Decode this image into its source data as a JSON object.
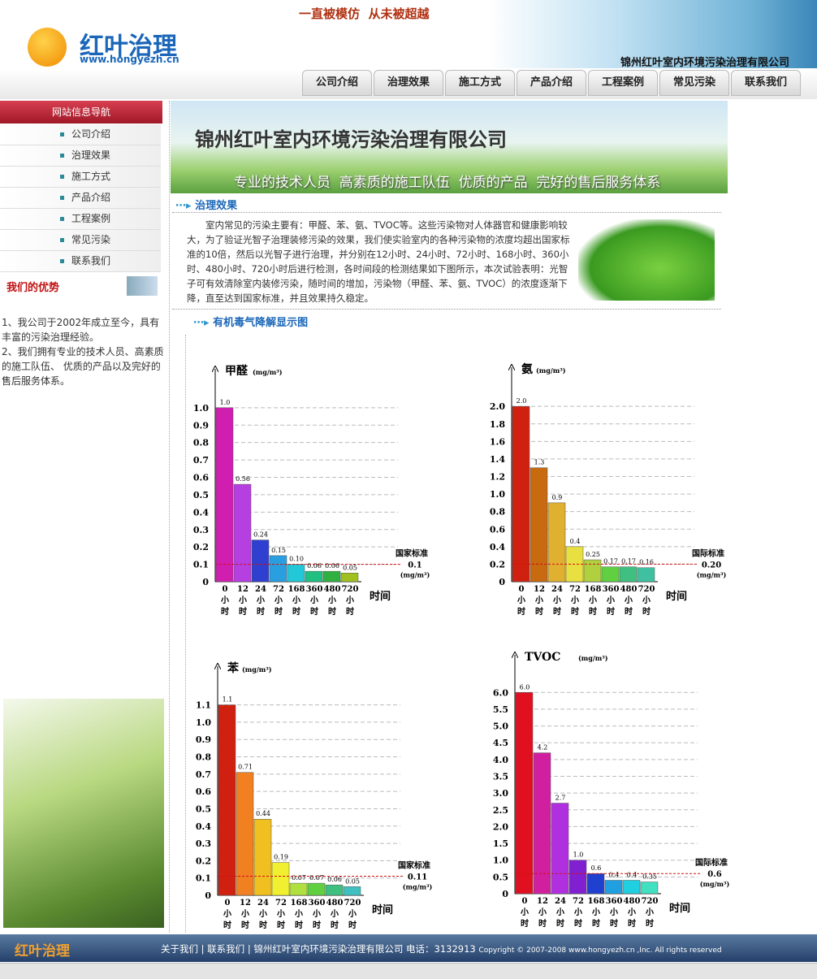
{
  "header": {
    "logo": "红叶治理",
    "url": "www.hongyezh.cn",
    "slogan": "一直被模仿  从未被超越",
    "company": "锦州红叶室内环境污染治理有限公司"
  },
  "nav": [
    "公司介绍",
    "治理效果",
    "施工方式",
    "产品介绍",
    "工程案例",
    "常见污染",
    "联系我们"
  ],
  "sidebar": {
    "nav_title": "网站信息导航",
    "items": [
      "公司介绍",
      "治理效果",
      "施工方式",
      "产品介绍",
      "工程案例",
      "常见污染",
      "联系我们"
    ],
    "advantage_title": "我们的优势",
    "advantages": [
      "1、我公司于2002年成立至今，具有丰富的污染治理经验。",
      "2、我们拥有专业的技术人员、高素质的施工队伍、 优质的产品以及完好的售后服务体系。"
    ]
  },
  "banner": {
    "title": "锦州红叶室内环境污染治理有限公司",
    "slogan": "专业的技术人员  高素质的施工队伍  优质的产品  完好的售后服务体系"
  },
  "section1": {
    "title": "治理效果",
    "text": "室内常见的污染主要有：甲醛、苯、氨、TVOC等。这些污染物对人体器官和健康影响较大，为了验证光智子治理装修污染的效果，我们使实验室内的各种污染物的浓度均超出国家标准的10倍，然后以光智子进行治理，并分别在12小时、24小时、72小时、168小时、360小时、480小时、720小时后进行检测，各时间段的检测结果如下图所示，本次试验表明：光智子可有效清除室内装修污染，随时间的增加，污染物（甲醛、苯、氨、TVOC）的浓度逐渐下降，直至达到国家标准，并且效果持久稳定。"
  },
  "section2": {
    "title": "有机毒气降解显示图"
  },
  "chart_data": [
    {
      "type": "bar",
      "title": "甲醛",
      "unit": "(mg/m³)",
      "xlabel": "时间",
      "categories": [
        "0小时",
        "12小时",
        "24小时",
        "72小时",
        "168小时",
        "360小时",
        "480小时",
        "720小时"
      ],
      "values": [
        1.0,
        0.56,
        0.24,
        0.15,
        0.1,
        0.06,
        0.06,
        0.05
      ],
      "value_labels": [
        "1.0",
        "0.56",
        "0.24",
        "0.15",
        "0.10",
        "0.06",
        "0.06",
        "0.05"
      ],
      "colors": [
        "#d01fb0",
        "#b53fe0",
        "#2f3fd0",
        "#2a9fe0",
        "#22c8d8",
        "#20c080",
        "#30b040",
        "#a0c020"
      ],
      "ylim": [
        0,
        1.2
      ],
      "yticks": [
        0,
        0.1,
        0.2,
        0.3,
        0.4,
        0.5,
        0.6,
        0.7,
        0.8,
        0.9,
        {
          "value": 1.0,
          "label": "1.0"
        }
      ],
      "grid": true,
      "standard": {
        "name": "国家标准",
        "value": 0.1
      }
    },
    {
      "type": "bar",
      "title": "氨",
      "unit": "(mg/m³)",
      "xlabel": "时间",
      "categories": [
        "0小时",
        "12小时",
        "24小时",
        "72小时",
        "168小时",
        "360小时",
        "480小时",
        "720小时"
      ],
      "values": [
        2.0,
        1.3,
        0.9,
        0.4,
        0.25,
        0.17,
        0.17,
        0.16
      ],
      "value_labels": [
        "2.0",
        "1.3",
        "0.9",
        "0.4",
        "0.25",
        "0.17",
        "0.17",
        "0.16"
      ],
      "colors": [
        "#d02010",
        "#c86a10",
        "#e0b030",
        "#e8e040",
        "#b0d040",
        "#60d040",
        "#40c080",
        "#40c0a0"
      ],
      "ylim": [
        0,
        2.4
      ],
      "yticks": [
        0,
        0.2,
        0.4,
        0.6,
        0.8,
        {
          "value": 1.0,
          "label": "1.0"
        },
        1.2,
        1.4,
        1.6,
        1.8,
        {
          "value": 2.0,
          "label": "2.0"
        }
      ],
      "grid": true,
      "standard": {
        "name": "国际标准",
        "value": 0.2,
        "label": "0.20"
      }
    },
    {
      "type": "bar",
      "title": "苯",
      "unit": "(mg/m³)",
      "xlabel": "时间",
      "categories": [
        "0小时",
        "12小时",
        "24小时",
        "72小时",
        "168小时",
        "360小时",
        "480小时",
        "720小时"
      ],
      "values": [
        1.1,
        0.71,
        0.44,
        0.19,
        0.07,
        0.07,
        0.06,
        0.05
      ],
      "value_labels": [
        "1.1",
        "0.71",
        "0.44",
        "0.19",
        "0.07",
        "0.07",
        "0.06",
        "0.05"
      ],
      "colors": [
        "#d02010",
        "#f08020",
        "#f0c020",
        "#f0f030",
        "#b0e040",
        "#60d040",
        "#40c080",
        "#40c0c0"
      ],
      "ylim": [
        0,
        1.3
      ],
      "yticks": [
        0,
        0.1,
        0.2,
        0.3,
        0.4,
        0.5,
        0.6,
        0.7,
        0.8,
        0.9,
        {
          "value": 1.0,
          "label": "1.0"
        },
        1.1
      ],
      "grid": true,
      "standard": {
        "name": "国家标准",
        "value": 0.11
      }
    },
    {
      "type": "bar",
      "title": "TVOC",
      "unit": "(mg/m³)",
      "xlabel": "时间",
      "categories": [
        "0小时",
        "12小时",
        "24小时",
        "72小时",
        "168小时",
        "360小时",
        "480小时",
        "720小时"
      ],
      "values": [
        6.0,
        4.2,
        2.7,
        1.0,
        0.6,
        0.4,
        0.4,
        0.35
      ],
      "value_labels": [
        "6.0",
        "4.2",
        "2.7",
        "1.0",
        "0.6",
        "0.4",
        "0.4",
        "0.35"
      ],
      "colors": [
        "#e01020",
        "#d020a0",
        "#b030e0",
        "#8020d0",
        "#2040d0",
        "#20a0e0",
        "#20d0e0",
        "#40e0c0"
      ],
      "ylim": [
        0,
        7
      ],
      "yticks": [
        0,
        0.5,
        {
          "value": 1.0,
          "label": "1.0"
        },
        1.5,
        {
          "value": 2.0,
          "label": "2.0"
        },
        2.5,
        {
          "value": 3.0,
          "label": "3.0"
        },
        3.5,
        {
          "value": 4.0,
          "label": "4.0"
        },
        4.5,
        {
          "value": 5.0,
          "label": "5.0"
        },
        5.5,
        {
          "value": 6.0,
          "label": "6.0"
        }
      ],
      "grid": true,
      "standard": {
        "name": "国际标准",
        "value": 0.6
      }
    }
  ],
  "footer": {
    "logo": "红叶治理",
    "links": [
      "关于我们",
      "联系我们"
    ],
    "company": "锦州红叶室内环境污染治理有限公司",
    "phone": "电话：3132913",
    "copyright": "Copyright © 2007-2008 www.hongyezh.cn ,Inc. All rights reserved"
  }
}
